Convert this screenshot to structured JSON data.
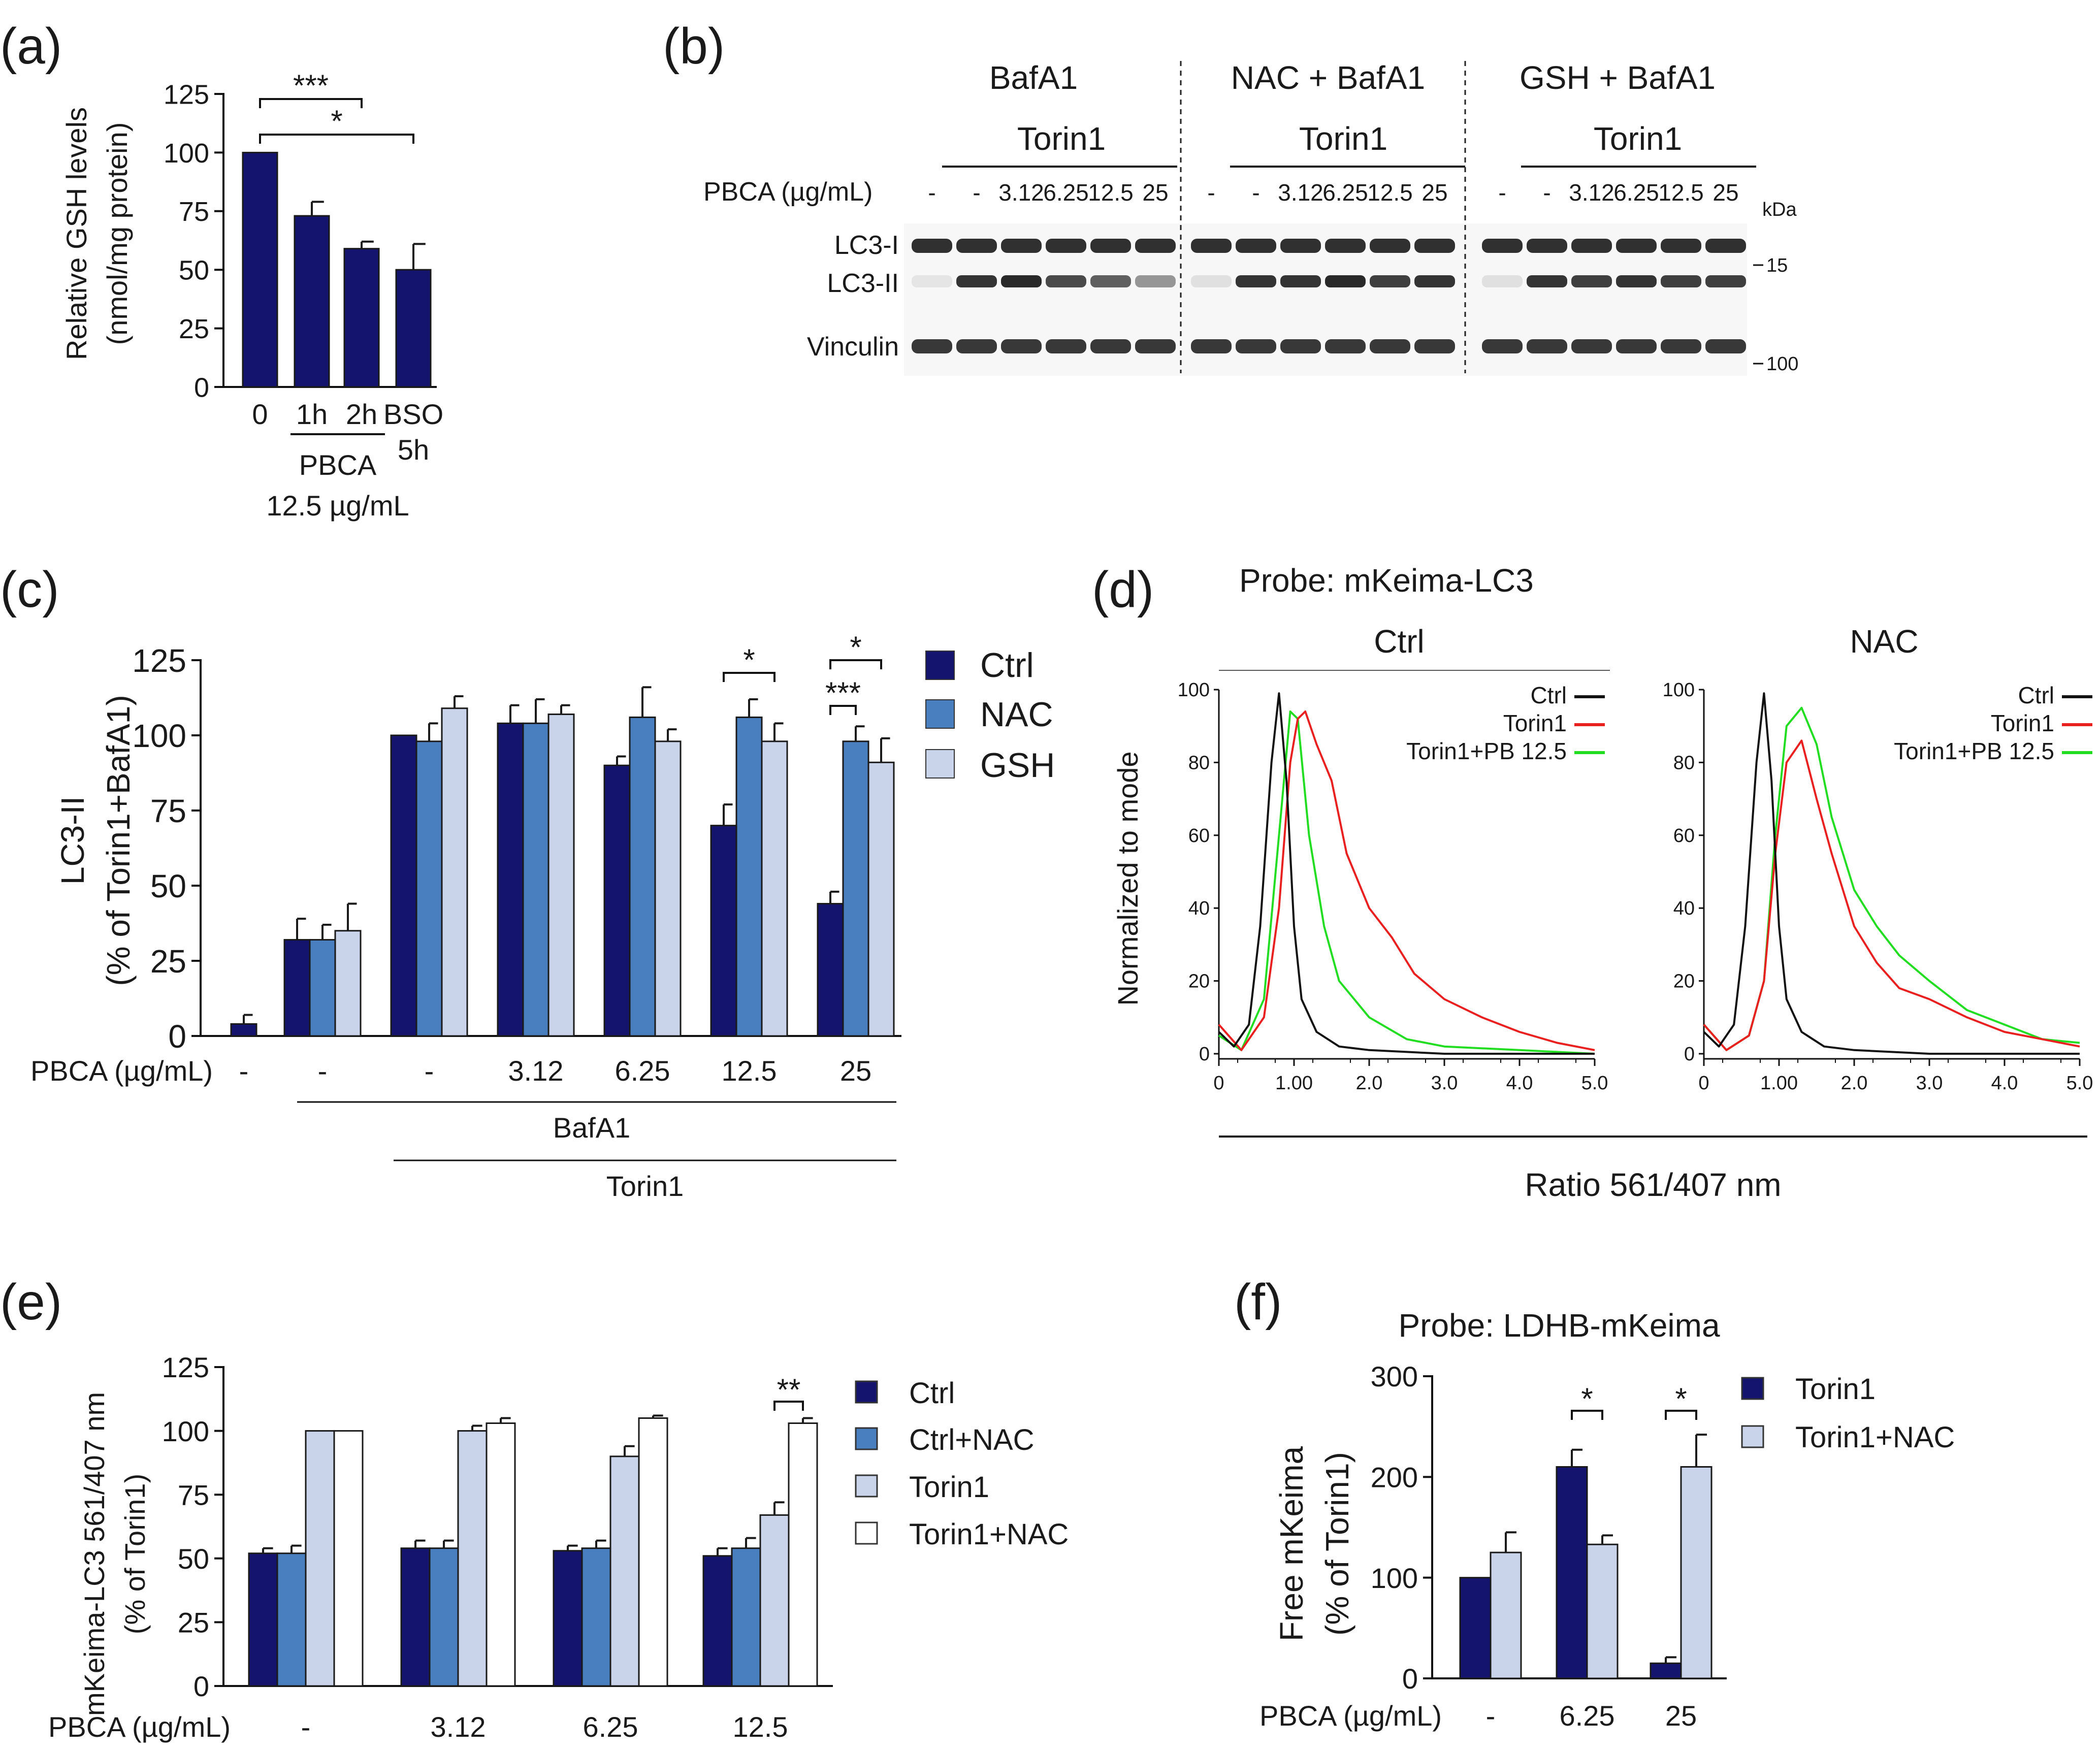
{
  "colors": {
    "navy": "#14146e",
    "blue": "#4a7fbf",
    "light": "#c9d4ea",
    "white": "#ffffff",
    "green": "#22dd22",
    "red": "#e82020",
    "black": "#111111",
    "blot_band": "#1e1e1e"
  },
  "chart_data": [
    {
      "panel": "(a)",
      "type": "bar",
      "ylabel_lines": [
        "Relative GSH levels",
        "(nmol/mg protein)"
      ],
      "ylim": [
        0,
        125
      ],
      "yticks": [
        0,
        25,
        50,
        75,
        100,
        125
      ],
      "categories": [
        "0",
        "1h",
        "2h",
        "BSO"
      ],
      "category_sub": [
        "",
        "",
        "",
        "5h"
      ],
      "values": [
        100,
        73,
        59,
        50
      ],
      "errors": [
        0,
        6,
        3,
        11
      ],
      "group_label": "PBCA",
      "group_sub": "12.5 µg/mL",
      "significance": [
        {
          "from": 0,
          "to": 2,
          "label": "***"
        },
        {
          "from": 0,
          "to": 3,
          "label": "*"
        }
      ]
    },
    {
      "panel": "(b)",
      "type": "blot",
      "groups": [
        "BafA1",
        "NAC + BafA1",
        "GSH + BafA1"
      ],
      "sub_label": "Torin1",
      "row_label": "PBCA (µg/mL)",
      "lane_labels": [
        "-",
        "-",
        "3.12",
        "6.25",
        "12.5",
        "25"
      ],
      "bands": [
        "LC3-I",
        "LC3-II",
        "Vinculin"
      ],
      "kda_title": "kDa",
      "kda_marks": [
        "15",
        "100"
      ],
      "lc3ii_intensity": [
        [
          0.08,
          0.9,
          0.95,
          0.8,
          0.7,
          0.45
        ],
        [
          0.1,
          0.9,
          0.9,
          0.95,
          0.85,
          0.9
        ],
        [
          0.1,
          0.9,
          0.85,
          0.9,
          0.85,
          0.85
        ]
      ]
    },
    {
      "panel": "(c)",
      "type": "bar",
      "ylabel_lines": [
        "LC3-II",
        "(% of Torin1+BafA1)"
      ],
      "ylim": [
        0,
        125
      ],
      "yticks": [
        0,
        25,
        50,
        75,
        100,
        125
      ],
      "categories": [
        "-",
        "-",
        "-",
        "3.12",
        "6.25",
        "12.5",
        "25"
      ],
      "row_label": "PBCA (µg/mL)",
      "series": [
        {
          "name": "Ctrl",
          "values": [
            4,
            32,
            100,
            104,
            90,
            70,
            44
          ],
          "errors": [
            3,
            7,
            0,
            6,
            3,
            7,
            4
          ]
        },
        {
          "name": "NAC",
          "values": [
            null,
            32,
            98,
            104,
            106,
            106,
            98
          ],
          "errors": [
            null,
            5,
            6,
            8,
            10,
            6,
            5
          ]
        },
        {
          "name": "GSH",
          "values": [
            null,
            35,
            109,
            107,
            98,
            98,
            91
          ],
          "errors": [
            null,
            9,
            4,
            3,
            4,
            6,
            8
          ]
        }
      ],
      "underline_labels": [
        "BafA1",
        "Torin1"
      ],
      "significance": [
        {
          "category": 5,
          "from": 0,
          "to": 2,
          "label": "*"
        },
        {
          "category": 6,
          "from": 0,
          "to": 2,
          "label": "*"
        },
        {
          "category": 6,
          "from": 0,
          "to": 1,
          "label": "***"
        }
      ]
    },
    {
      "panel": "(d)",
      "type": "line",
      "title": "Probe: mKeima-LC3",
      "xlabel": "Ratio 561/407 nm",
      "ylabel": "Normalized to mode",
      "xlim": [
        0,
        5
      ],
      "ylim": [
        0,
        100
      ],
      "xticks": [
        "0",
        "1.00",
        "2.0",
        "3.0",
        "4.0",
        "5.0"
      ],
      "yticks": [
        0,
        20,
        40,
        60,
        80,
        100
      ],
      "subplots": [
        {
          "title": "Ctrl",
          "series": [
            {
              "name": "Ctrl",
              "x": [
                0,
                0.2,
                0.4,
                0.55,
                0.7,
                0.8,
                0.9,
                1.0,
                1.1,
                1.3,
                1.6,
                2.0,
                3.0,
                4.0,
                5.0
              ],
              "y": [
                6,
                2,
                8,
                35,
                80,
                99,
                75,
                35,
                15,
                6,
                2,
                1,
                0,
                0,
                0
              ]
            },
            {
              "name": "Torin1",
              "x": [
                0,
                0.3,
                0.6,
                0.8,
                0.95,
                1.05,
                1.15,
                1.3,
                1.5,
                1.7,
                2.0,
                2.3,
                2.6,
                3.0,
                3.5,
                4.0,
                4.5,
                5.0
              ],
              "y": [
                8,
                1,
                10,
                40,
                80,
                92,
                94,
                85,
                75,
                55,
                40,
                32,
                22,
                15,
                10,
                6,
                3,
                1
              ]
            },
            {
              "name": "Torin1+PB 12.5",
              "x": [
                0,
                0.3,
                0.6,
                0.8,
                0.95,
                1.05,
                1.2,
                1.4,
                1.6,
                2.0,
                2.5,
                3.0,
                4.0,
                5.0
              ],
              "y": [
                5,
                1,
                15,
                60,
                94,
                92,
                60,
                35,
                20,
                10,
                4,
                2,
                1,
                0
              ]
            }
          ]
        },
        {
          "title": "NAC",
          "series": [
            {
              "name": "Ctrl",
              "x": [
                0,
                0.2,
                0.4,
                0.55,
                0.7,
                0.8,
                0.9,
                1.0,
                1.1,
                1.3,
                1.6,
                2.0,
                3.0,
                4.0,
                5.0
              ],
              "y": [
                6,
                2,
                8,
                35,
                80,
                99,
                75,
                35,
                15,
                6,
                2,
                1,
                0,
                0,
                0
              ]
            },
            {
              "name": "Torin1",
              "x": [
                0,
                0.3,
                0.6,
                0.8,
                0.95,
                1.1,
                1.3,
                1.5,
                1.7,
                2.0,
                2.3,
                2.6,
                3.0,
                3.5,
                4.0,
                4.5,
                5.0
              ],
              "y": [
                8,
                1,
                5,
                20,
                55,
                80,
                86,
                70,
                55,
                35,
                25,
                18,
                15,
                10,
                6,
                4,
                2
              ]
            },
            {
              "name": "Torin1+PB 12.5",
              "x": [
                0,
                0.3,
                0.6,
                0.8,
                0.95,
                1.1,
                1.3,
                1.5,
                1.7,
                2.0,
                2.3,
                2.6,
                3.0,
                3.5,
                4.0,
                4.5,
                5.0
              ],
              "y": [
                8,
                1,
                5,
                20,
                60,
                90,
                95,
                85,
                65,
                45,
                35,
                27,
                20,
                12,
                8,
                4,
                3
              ]
            }
          ]
        }
      ]
    },
    {
      "panel": "(e)",
      "type": "bar",
      "ylabel_lines": [
        "mKeima-LC3 561/407 nm",
        "(% of Torin1)"
      ],
      "ylim": [
        0,
        125
      ],
      "yticks": [
        0,
        25,
        50,
        75,
        100,
        125
      ],
      "categories": [
        "-",
        "3.12",
        "6.25",
        "12.5"
      ],
      "row_label": "PBCA (µg/mL)",
      "series": [
        {
          "name": "Ctrl",
          "values": [
            52,
            54,
            53,
            51
          ],
          "errors": [
            2,
            3,
            2,
            3
          ]
        },
        {
          "name": "Ctrl+NAC",
          "values": [
            52,
            54,
            54,
            54
          ],
          "errors": [
            3,
            3,
            3,
            4
          ]
        },
        {
          "name": "Torin1",
          "values": [
            100,
            100,
            90,
            67
          ],
          "errors": [
            0,
            2,
            4,
            5
          ]
        },
        {
          "name": "Torin1+NAC",
          "values": [
            100,
            103,
            105,
            103
          ],
          "errors": [
            0,
            2,
            1,
            2
          ]
        }
      ],
      "significance": [
        {
          "category": 3,
          "from": 2,
          "to": 3,
          "label": "**"
        }
      ]
    },
    {
      "panel": "(f)",
      "type": "bar",
      "title": "Probe: LDHB-mKeima",
      "ylabel_lines": [
        "Free mKeima",
        "(% of Torin1)"
      ],
      "ylim": [
        0,
        300
      ],
      "yticks": [
        0,
        100,
        200,
        300
      ],
      "categories": [
        "-",
        "6.25",
        "25"
      ],
      "row_label": "PBCA (µg/mL)",
      "series": [
        {
          "name": "Torin1",
          "values": [
            100,
            210,
            15
          ],
          "errors": [
            0,
            17,
            6
          ]
        },
        {
          "name": "Torin1+NAC",
          "values": [
            125,
            133,
            210
          ],
          "errors": [
            20,
            9,
            32
          ]
        }
      ],
      "significance": [
        {
          "category": 1,
          "from": 0,
          "to": 1,
          "label": "*"
        },
        {
          "category": 2,
          "from": 0,
          "to": 1,
          "label": "*"
        }
      ]
    }
  ]
}
